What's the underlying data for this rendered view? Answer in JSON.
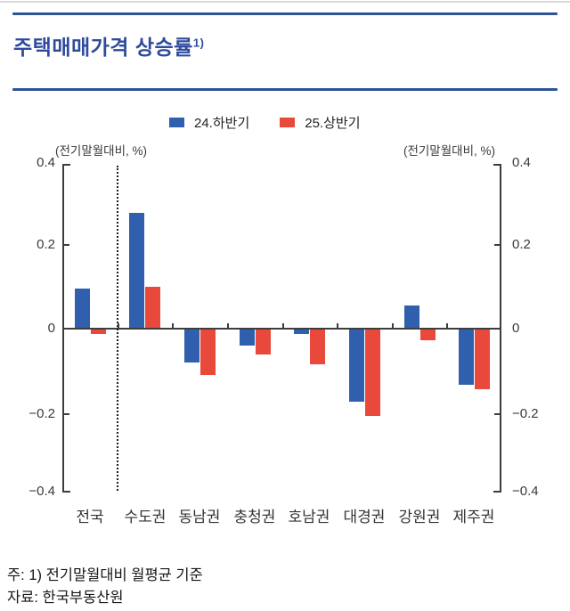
{
  "header": {
    "title": "주택매매가격 상승률",
    "title_superscript": "1)"
  },
  "legend": [
    {
      "label": "24.하반기",
      "color": "#2f5fad"
    },
    {
      "label": "25.상반기",
      "color": "#e8493b"
    }
  ],
  "axis": {
    "unit_left": "(전기말월대비, %)",
    "unit_right": "(전기말월대비, %)",
    "yticks_left": [
      "0.4",
      "0.2",
      "0",
      "−0.2",
      "−0.4"
    ],
    "yticks_right": [
      "0.4",
      "0.2",
      "0",
      "−0.2",
      "−0.4"
    ]
  },
  "chart_data": {
    "type": "bar",
    "title": "주택매매가격 상승률 1)",
    "unit": "(전기말월대비, %)",
    "categories": [
      "전국",
      "수도권",
      "동남권",
      "충청권",
      "호남권",
      "대경권",
      "강원권",
      "제주권"
    ],
    "series": [
      {
        "name": "24.하반기",
        "color": "#2f5fad",
        "values": [
          0.095,
          0.28,
          -0.08,
          -0.04,
          -0.01,
          -0.175,
          0.055,
          -0.135
        ]
      },
      {
        "name": "25.상반기",
        "color": "#e8493b",
        "values": [
          -0.01,
          0.1,
          -0.11,
          -0.06,
          -0.085,
          -0.21,
          -0.025,
          -0.145
        ]
      }
    ],
    "ylim": [
      -0.4,
      0.4
    ],
    "ytick_interval": 0.2,
    "grid": false,
    "legend_position": "top",
    "separator_dotted_after_category": "전국"
  },
  "footnotes": {
    "note": "주: 1) 전기말월대비 월평균 기준",
    "source": "자료: 한국부동산원"
  }
}
